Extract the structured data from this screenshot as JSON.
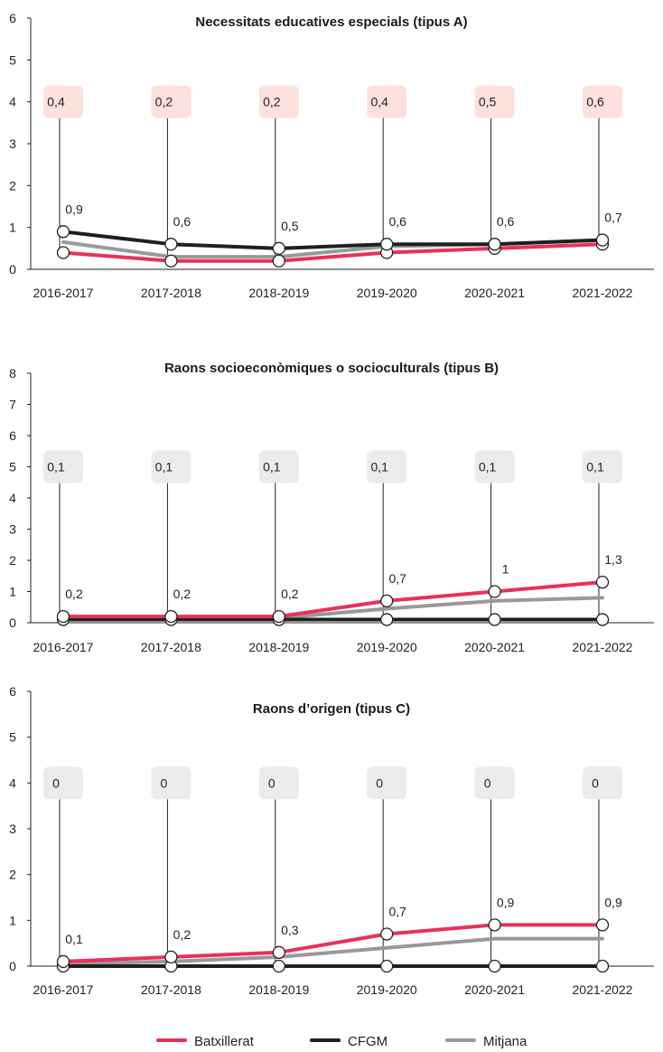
{
  "colors": {
    "batxillerat": "#e8315b",
    "cfgm": "#1f1f1f",
    "mitjana": "#999999",
    "box_a": "#fde1dc",
    "box_default": "#ebebeb",
    "axis": "#222222"
  },
  "legend": [
    {
      "label": "Batxillerat",
      "color_key": "batxillerat"
    },
    {
      "label": "CFGM",
      "color_key": "cfgm"
    },
    {
      "label": "Mitjana",
      "color_key": "mitjana"
    }
  ],
  "chart_data": [
    {
      "type": "line",
      "title": "Necessitats educatives especials (tipus A)",
      "categories": [
        "2016-2017",
        "2017-2018",
        "2018-2019",
        "2019-2020",
        "2020-2021",
        "2021-2022"
      ],
      "ylim": [
        0,
        6
      ],
      "yticks": [
        "0",
        "1",
        "2",
        "3",
        "4",
        "5",
        "6"
      ],
      "series": [
        {
          "name": "Mitjana",
          "color_key": "mitjana",
          "values": [
            0.65,
            0.3,
            0.3,
            0.55,
            0.6,
            0.7
          ]
        },
        {
          "name": "Batxillerat",
          "color_key": "batxillerat",
          "values": [
            0.4,
            0.2,
            0.2,
            0.4,
            0.5,
            0.6
          ]
        },
        {
          "name": "CFGM",
          "color_key": "cfgm",
          "values": [
            0.9,
            0.6,
            0.5,
            0.6,
            0.6,
            0.7
          ]
        }
      ],
      "top_labels": [
        "0,9",
        "0,6",
        "0,5",
        "0,6",
        "0,6",
        "0,7"
      ],
      "top_series": "CFGM",
      "box_labels": [
        "0,4",
        "0,2",
        "0,2",
        "0,4",
        "0,5",
        "0,6"
      ],
      "box_series": "Batxillerat",
      "box_value": 4,
      "box_color_key": "box_a"
    },
    {
      "type": "line",
      "title": "Raons socioeconòmiques o socioculturals (tipus B)",
      "categories": [
        "2016-2017",
        "2017-2018",
        "2018-2019",
        "2019-2020",
        "2020-2021",
        "2021-2022"
      ],
      "ylim": [
        0,
        8
      ],
      "yticks": [
        "0",
        "1",
        "2",
        "3",
        "4",
        "5",
        "6",
        "7",
        "8"
      ],
      "series": [
        {
          "name": "Mitjana",
          "color_key": "mitjana",
          "values": [
            0.15,
            0.15,
            0.15,
            0.45,
            0.7,
            0.8
          ]
        },
        {
          "name": "CFGM",
          "color_key": "cfgm",
          "values": [
            0.1,
            0.1,
            0.1,
            0.1,
            0.1,
            0.1
          ]
        },
        {
          "name": "Batxillerat",
          "color_key": "batxillerat",
          "values": [
            0.2,
            0.2,
            0.2,
            0.7,
            1.0,
            1.3
          ]
        }
      ],
      "top_labels": [
        "0,2",
        "0,2",
        "0,2",
        "0,7",
        "1",
        "1,3"
      ],
      "top_series": "Batxillerat",
      "box_labels": [
        "0,1",
        "0,1",
        "0,1",
        "0,1",
        "0,1",
        "0,1"
      ],
      "box_series": "CFGM",
      "box_value": 5,
      "box_color_key": "box_default"
    },
    {
      "type": "line",
      "title": "Raons d’origen (tipus C)",
      "categories": [
        "2016-2017",
        "2017-2018",
        "2018-2019",
        "2019-2020",
        "2020-2021",
        "2021-2022"
      ],
      "ylim": [
        0,
        6
      ],
      "yticks": [
        "0",
        "1",
        "2",
        "3",
        "4",
        "5",
        "6"
      ],
      "series": [
        {
          "name": "Mitjana",
          "color_key": "mitjana",
          "values": [
            0.05,
            0.1,
            0.2,
            0.4,
            0.6,
            0.6
          ]
        },
        {
          "name": "CFGM",
          "color_key": "cfgm",
          "values": [
            0,
            0,
            0,
            0,
            0,
            0
          ]
        },
        {
          "name": "Batxillerat",
          "color_key": "batxillerat",
          "values": [
            0.1,
            0.2,
            0.3,
            0.7,
            0.9,
            0.9
          ]
        }
      ],
      "top_labels": [
        "0,1",
        "0,2",
        "0,3",
        "0,7",
        "0,9",
        "0,9"
      ],
      "top_series": "Batxillerat",
      "box_labels": [
        "0",
        "0",
        "0",
        "0",
        "0",
        "0"
      ],
      "box_series": "CFGM",
      "box_value": 4,
      "box_color_key": "box_default"
    }
  ]
}
